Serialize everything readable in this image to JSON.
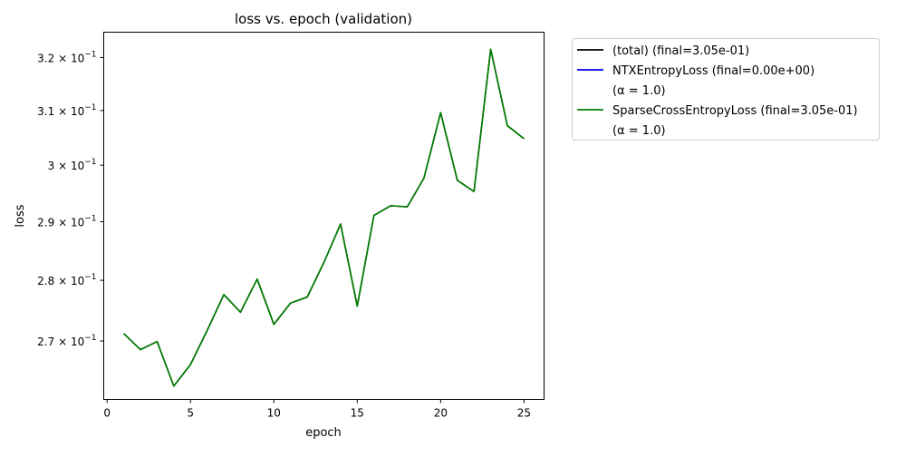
{
  "chart_data": {
    "type": "line",
    "title": "loss vs. epoch (validation)",
    "xlabel": "epoch",
    "ylabel": "loss",
    "xlim": [
      -0.2,
      26.2
    ],
    "ylim": [
      0.2607,
      0.3249
    ],
    "yscale": "log",
    "grid": false,
    "legend_position": "outside-top-right",
    "x_ticks": [
      0,
      5,
      10,
      15,
      20,
      25
    ],
    "x_tick_labels": [
      "0",
      "5",
      "10",
      "15",
      "20",
      "25"
    ],
    "y_ticks": [
      0.27,
      0.28,
      0.29,
      0.3,
      0.31,
      0.32
    ],
    "y_tick_labels": [
      {
        "mantissa": "2.7",
        "base": "10",
        "exp": "−1"
      },
      {
        "mantissa": "2.8",
        "base": "10",
        "exp": "−1"
      },
      {
        "mantissa": "2.9",
        "base": "10",
        "exp": "−1"
      },
      {
        "mantissa": "3",
        "base": "10",
        "exp": "−1"
      },
      {
        "mantissa": "3.1",
        "base": "10",
        "exp": "−1"
      },
      {
        "mantissa": "3.2",
        "base": "10",
        "exp": "−1"
      }
    ],
    "x": [
      1,
      2,
      3,
      4,
      5,
      6,
      7,
      8,
      9,
      10,
      11,
      12,
      13,
      14,
      15,
      16,
      17,
      18,
      19,
      20,
      21,
      22,
      23,
      24,
      25
    ],
    "series": [
      {
        "name": "(total)      (final=3.05e-01)",
        "legend_lines": [
          "(total)      (final=3.05e-01)"
        ],
        "color": "#000000",
        "values": [
          0.2712,
          0.2686,
          0.2699,
          0.2628,
          0.2662,
          0.2717,
          0.2776,
          0.2747,
          0.2802,
          0.2727,
          0.2762,
          0.2772,
          0.283,
          0.2896,
          0.2757,
          0.2911,
          0.2928,
          0.2926,
          0.2977,
          0.3096,
          0.2973,
          0.2953,
          0.3216,
          0.3072,
          0.3048
        ]
      },
      {
        "name": "NTXEntropyLoss (final=0.00e+00) (α = 1.0)",
        "legend_lines": [
          "NTXEntropyLoss (final=0.00e+00)",
          "(α = 1.0)"
        ],
        "color": "#0000ff",
        "values": [
          0,
          0,
          0,
          0,
          0,
          0,
          0,
          0,
          0,
          0,
          0,
          0,
          0,
          0,
          0,
          0,
          0,
          0,
          0,
          0,
          0,
          0,
          0,
          0,
          0
        ]
      },
      {
        "name": "SparseCrossEntropyLoss (final=3.05e-01) (α = 1.0)",
        "legend_lines": [
          "SparseCrossEntropyLoss (final=3.05e-01)",
          "(α = 1.0)"
        ],
        "color": "#008000",
        "values": [
          0.2712,
          0.2686,
          0.2699,
          0.2628,
          0.2662,
          0.2717,
          0.2776,
          0.2747,
          0.2802,
          0.2727,
          0.2762,
          0.2772,
          0.283,
          0.2896,
          0.2757,
          0.2911,
          0.2928,
          0.2926,
          0.2977,
          0.3096,
          0.2973,
          0.2953,
          0.3216,
          0.3072,
          0.3048
        ]
      }
    ]
  }
}
